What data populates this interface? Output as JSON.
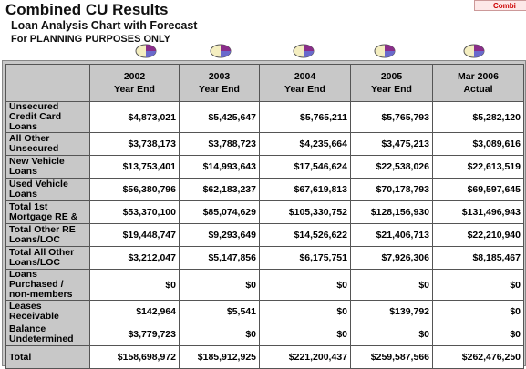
{
  "header": {
    "title": "Combined CU Results",
    "subtitle": "Loan Analysis Chart with Forecast",
    "note": "For PLANNING PURPOSES ONLY",
    "button": "Combi"
  },
  "table": {
    "columns": [
      [
        "2002",
        "Year End"
      ],
      [
        "2003",
        "Year End"
      ],
      [
        "2004",
        "Year End"
      ],
      [
        "2005",
        "Year End"
      ],
      [
        "Mar 2006",
        "Actual"
      ]
    ],
    "rows": [
      {
        "label": "Unsecured Credit Card Loans",
        "values": [
          "$4,873,021",
          "$5,425,647",
          "$5,765,211",
          "$5,765,793",
          "$5,282,120"
        ]
      },
      {
        "label": "All Other Unsecured",
        "values": [
          "$3,738,173",
          "$3,788,723",
          "$4,235,664",
          "$3,475,213",
          "$3,089,616"
        ]
      },
      {
        "label": "New Vehicle Loans",
        "values": [
          "$13,753,401",
          "$14,993,643",
          "$17,546,624",
          "$22,538,026",
          "$22,613,519"
        ]
      },
      {
        "label": "Used Vehicle Loans",
        "values": [
          "$56,380,796",
          "$62,183,237",
          "$67,619,813",
          "$70,178,793",
          "$69,597,645"
        ]
      },
      {
        "label": "Total 1st Mortgage RE &",
        "values": [
          "$53,370,100",
          "$85,074,629",
          "$105,330,752",
          "$128,156,930",
          "$131,496,943"
        ]
      },
      {
        "label": "Total Other RE Loans/LOC",
        "values": [
          "$19,448,747",
          "$9,293,649",
          "$14,526,622",
          "$21,406,713",
          "$22,210,940"
        ]
      },
      {
        "label": "Total All Other Loans/LOC",
        "values": [
          "$3,212,047",
          "$5,147,856",
          "$6,175,751",
          "$7,926,306",
          "$8,185,467"
        ]
      },
      {
        "label": "Loans Purchased / non-members",
        "values": [
          "$0",
          "$0",
          "$0",
          "$0",
          "$0"
        ]
      },
      {
        "label": "Leases Receivable",
        "values": [
          "$142,964",
          "$5,541",
          "$0",
          "$139,792",
          "$0"
        ]
      },
      {
        "label": "Balance Undetermined",
        "values": [
          "$3,779,723",
          "$0",
          "$0",
          "$0",
          "$0"
        ]
      },
      {
        "label": "Total",
        "values": [
          "$158,698,972",
          "$185,912,925",
          "$221,200,437",
          "$259,587,566",
          "$262,476,250"
        ]
      }
    ]
  }
}
